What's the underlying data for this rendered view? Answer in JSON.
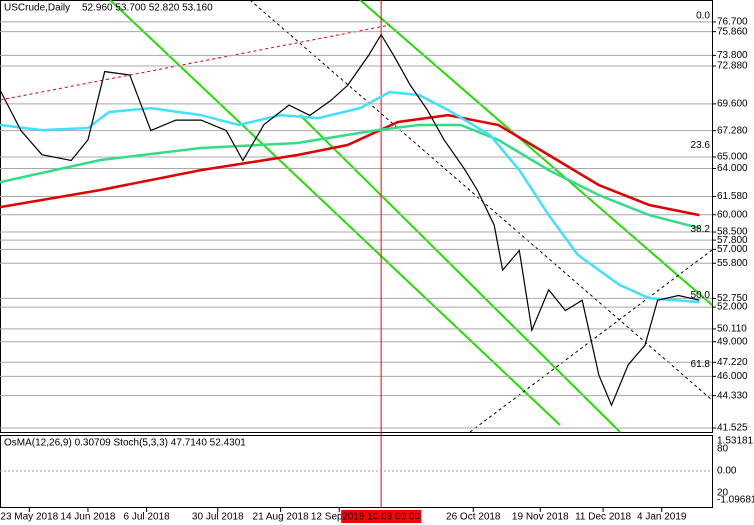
{
  "chart_data": {
    "type": "line",
    "title": "USCrude,Daily",
    "subtitle": "52.960 53.700 52.820 53.160",
    "xlim": [
      0,
      170
    ],
    "ylim": [
      41.18,
      78.6
    ],
    "grid": true,
    "xticks": [
      {
        "value": 7,
        "label": "23 May 2018"
      },
      {
        "value": 21,
        "label": "14 Jun 2018"
      },
      {
        "value": 35,
        "label": "6 Jul 2018"
      },
      {
        "value": 52,
        "label": "30 Jul 2018"
      },
      {
        "value": 67,
        "label": "21 Aug 2018"
      },
      {
        "value": 81,
        "label": "12 Sep 2018"
      },
      {
        "value": 113,
        "label": "26 Oct 2018"
      },
      {
        "value": 129,
        "label": "19 Nov 2018"
      },
      {
        "value": 144,
        "label": "11 Dec 2018"
      },
      {
        "value": 158,
        "label": "4 Jan 2019"
      }
    ],
    "cursor": {
      "value": 91,
      "label": "2018.10.03 00:00",
      "color": "#ff0000"
    },
    "yticks": [
      {
        "value": 76.7,
        "label": "76.700"
      },
      {
        "value": 75.86,
        "label": "75.860"
      },
      {
        "value": 73.8,
        "label": "73.800"
      },
      {
        "value": 72.88,
        "label": "72.880"
      },
      {
        "value": 69.6,
        "label": "69.600"
      },
      {
        "value": 67.28,
        "label": "67.280"
      },
      {
        "value": 65,
        "label": "65.000"
      },
      {
        "value": 64,
        "label": "64.000"
      },
      {
        "value": 61.58,
        "label": "61.580"
      },
      {
        "value": 60,
        "label": "60.000"
      },
      {
        "value": 58.5,
        "label": "58.500"
      },
      {
        "value": 57.8,
        "label": "57.800"
      },
      {
        "value": 57,
        "label": "57.000"
      },
      {
        "value": 55.8,
        "label": "55.800"
      },
      {
        "value": 52.75,
        "label": "52.750"
      },
      {
        "value": 52,
        "label": "52.000"
      },
      {
        "value": 50.11,
        "label": "50.110"
      },
      {
        "value": 49,
        "label": "49.000"
      },
      {
        "value": 47.22,
        "label": "47.220"
      },
      {
        "value": 46,
        "label": "46.000"
      },
      {
        "value": 44.33,
        "label": "44.330"
      },
      {
        "value": 41.525,
        "label": "41.525"
      }
    ],
    "fib_levels": [
      {
        "label": "0.0",
        "value": 76.7
      },
      {
        "label": "23.6",
        "value": 65.5
      },
      {
        "label": "38.2",
        "value": 58.2
      },
      {
        "label": "50.0",
        "value": 52.5
      },
      {
        "label": "61.8",
        "value": 46.5
      }
    ],
    "series": [
      {
        "color": "#000000",
        "x": [
          0,
          5,
          10,
          17,
          21,
          25,
          31,
          36,
          42,
          48,
          54,
          58,
          63,
          69,
          74,
          79,
          83,
          88,
          91,
          94,
          98,
          102,
          106,
          111,
          114,
          118,
          120,
          124,
          127,
          131,
          135,
          139,
          143,
          146,
          150,
          154,
          157,
          162,
          167
        ],
        "values": [
          70.8,
          67.3,
          65.2,
          64.7,
          66.5,
          72.4,
          72.1,
          67.3,
          68.2,
          68.2,
          67.3,
          64.7,
          67.8,
          69.5,
          68.6,
          69.9,
          71.2,
          73.8,
          75.6,
          73.8,
          71.2,
          69.1,
          66.5,
          63.9,
          62.1,
          59.1,
          55.2,
          56.9,
          50.0,
          53.5,
          51.7,
          52.6,
          46.1,
          43.5,
          47.0,
          48.7,
          52.6,
          53.0,
          52.6
        ]
      },
      {
        "color": "#40e0ff",
        "x": [
          0,
          10,
          21,
          26,
          36,
          48,
          57,
          67,
          76,
          86,
          93,
          100,
          107,
          117,
          124,
          131,
          138,
          148,
          155,
          167
        ],
        "values": [
          67.77,
          67.33,
          67.51,
          68.89,
          69.24,
          68.63,
          67.77,
          68.63,
          68.37,
          69.24,
          70.63,
          70.37,
          69.07,
          66.9,
          63.87,
          59.97,
          56.5,
          53.9,
          52.78,
          52.43
        ]
      },
      {
        "color": "#33dd88",
        "x": [
          0,
          24,
          48,
          71,
          90,
          100,
          110,
          119,
          131,
          143,
          155,
          167
        ],
        "values": [
          62.83,
          64.74,
          65.78,
          66.21,
          67.33,
          67.77,
          67.77,
          66.47,
          63.87,
          61.7,
          59.97,
          58.84
        ]
      },
      {
        "color": "#e00000",
        "x": [
          0,
          24,
          48,
          71,
          83,
          95,
          107,
          119,
          131,
          143,
          155,
          167
        ],
        "values": [
          60.66,
          62.14,
          63.87,
          65.17,
          66.04,
          68.03,
          68.63,
          67.77,
          65.17,
          62.57,
          60.84,
          59.97
        ]
      }
    ],
    "indicator": {
      "title": "OsMA(12,26,9) 0.30709  Stoch(5,3,3) 47.7140 52.4301",
      "ticks": [
        "1.53181",
        "80",
        "0.00",
        "20",
        "-1.09681"
      ]
    }
  }
}
